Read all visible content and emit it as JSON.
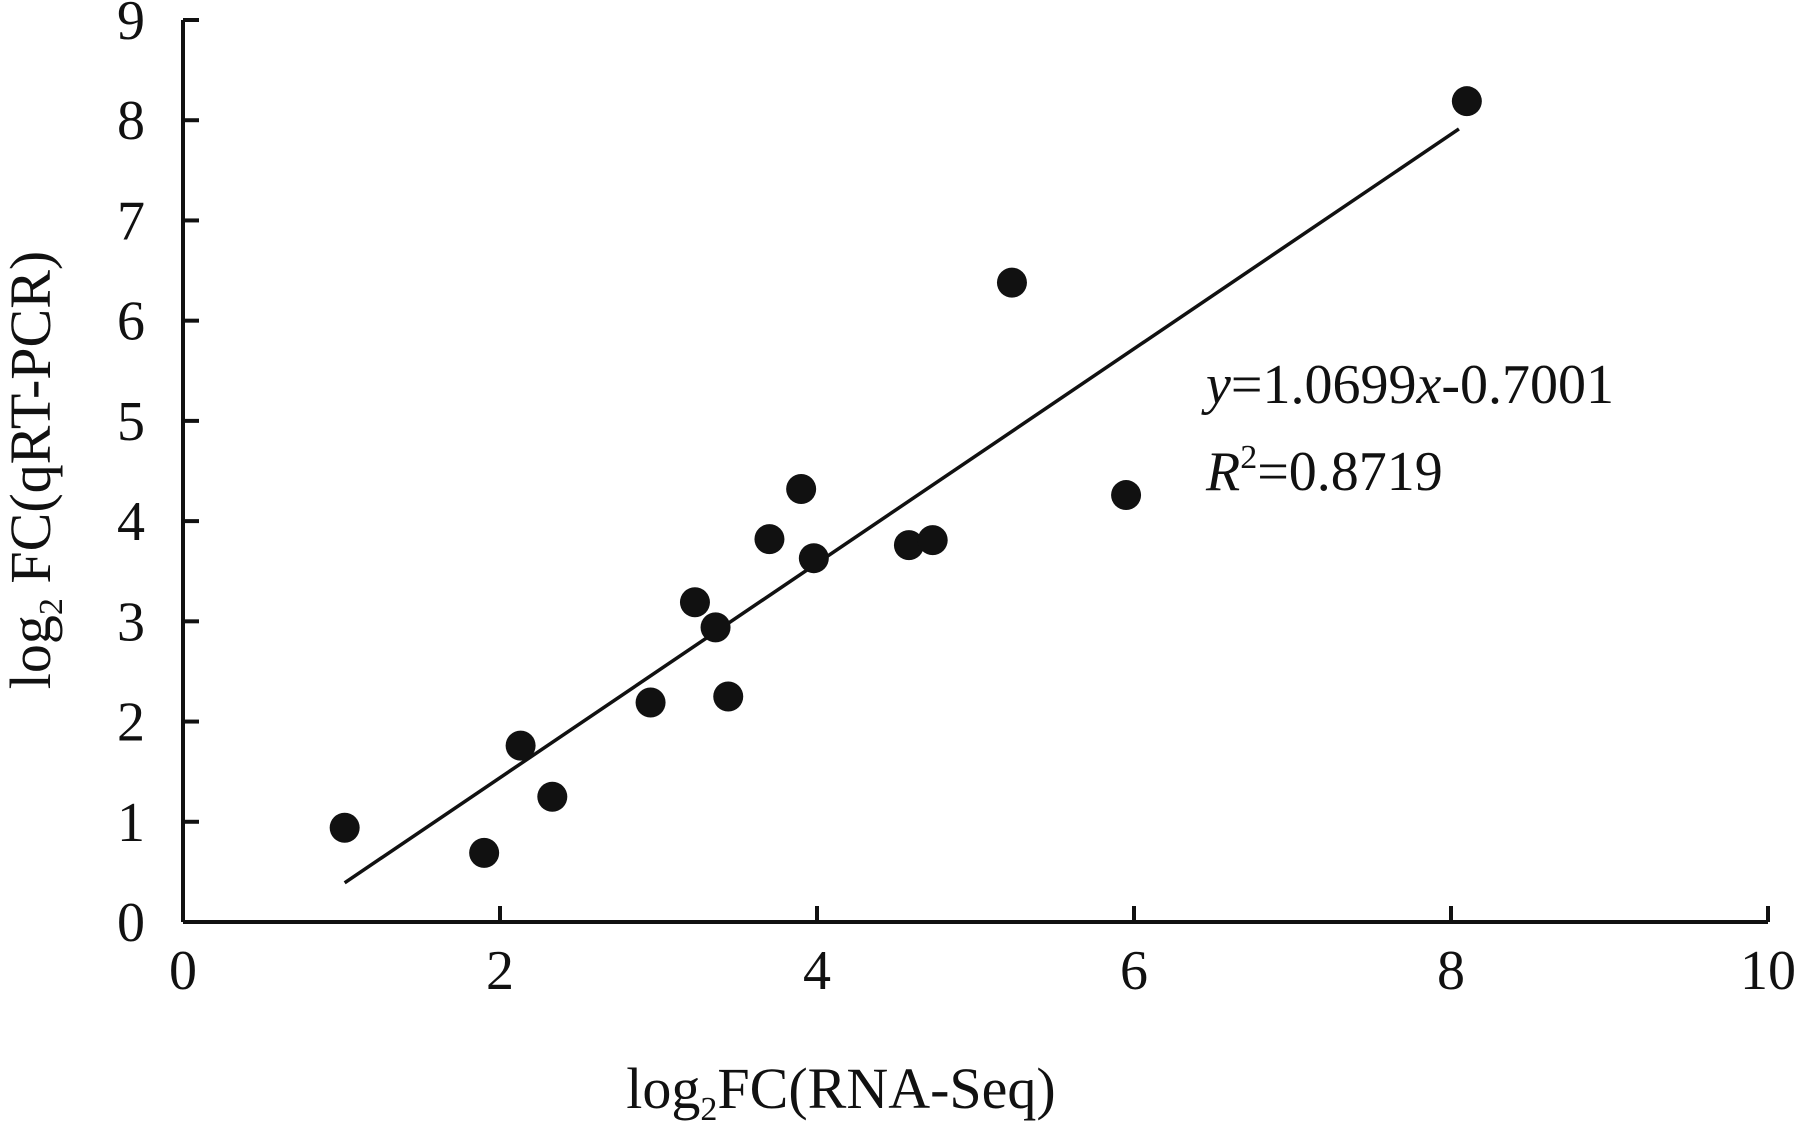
{
  "chart_data": {
    "type": "scatter",
    "title": "",
    "xlabel_parts": {
      "pre": "log",
      "sub": "2",
      "post": "FC(RNA-Seq)"
    },
    "ylabel_parts": {
      "pre": "log",
      "sub": "2",
      "post": " FC(qRT-PCR)"
    },
    "xlim": [
      0,
      10
    ],
    "ylim": [
      0,
      9
    ],
    "xticks": [
      "0",
      "2",
      "4",
      "6",
      "8",
      "10"
    ],
    "yticks": [
      "0",
      "1",
      "2",
      "3",
      "4",
      "5",
      "6",
      "7",
      "8",
      "9"
    ],
    "grid": false,
    "legend": "none",
    "points": [
      {
        "x": 1.02,
        "y": 0.94
      },
      {
        "x": 1.9,
        "y": 0.69
      },
      {
        "x": 2.13,
        "y": 1.76
      },
      {
        "x": 2.33,
        "y": 1.25
      },
      {
        "x": 2.95,
        "y": 2.19
      },
      {
        "x": 3.23,
        "y": 3.19
      },
      {
        "x": 3.36,
        "y": 2.94
      },
      {
        "x": 3.44,
        "y": 2.25
      },
      {
        "x": 3.7,
        "y": 3.82
      },
      {
        "x": 3.9,
        "y": 4.32
      },
      {
        "x": 3.98,
        "y": 3.63
      },
      {
        "x": 4.58,
        "y": 3.76
      },
      {
        "x": 4.73,
        "y": 3.81
      },
      {
        "x": 5.23,
        "y": 6.38
      },
      {
        "x": 5.95,
        "y": 4.26
      },
      {
        "x": 8.1,
        "y": 8.19
      }
    ],
    "trendline": {
      "slope": 1.0699,
      "intercept": -0.7001,
      "x_range": [
        1.02,
        8.05
      ],
      "equation_parts": {
        "y": "y",
        "mid": "=1.0699",
        "x": "x",
        "tail": "-0.7001"
      },
      "r2_parts": {
        "r": "R",
        "sup": "2",
        "tail": "=0.8719"
      }
    },
    "colors": {
      "marker": "#111111",
      "line": "#111111",
      "axis": "#111111"
    }
  }
}
